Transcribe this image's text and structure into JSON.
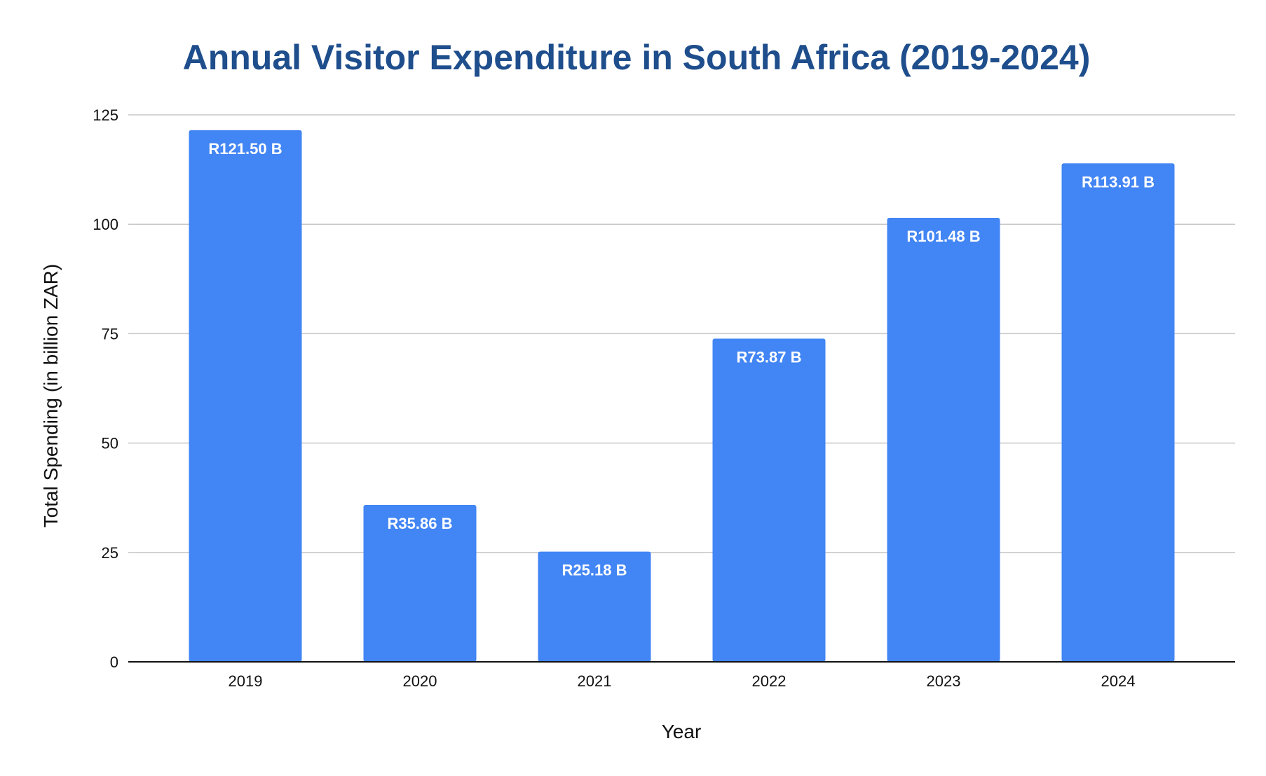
{
  "chart_data": {
    "type": "bar",
    "title": "Annual Visitor Expenditure in South Africa (2019-2024)",
    "xlabel": "Year",
    "ylabel": "Total Spending (in billion ZAR)",
    "categories": [
      "2019",
      "2020",
      "2021",
      "2022",
      "2023",
      "2024"
    ],
    "values": [
      121.5,
      35.86,
      25.18,
      73.87,
      101.48,
      113.91
    ],
    "data_labels": [
      "R121.50 B",
      "R35.86 B",
      "R25.18 B",
      "R73.87 B",
      "R101.48 B",
      "R113.91 B"
    ],
    "ylim": [
      0,
      125
    ],
    "yticks": [
      0,
      25,
      50,
      75,
      100,
      125
    ],
    "ytick_labels": [
      "0",
      "25",
      "50",
      "75",
      "100",
      "125"
    ],
    "grid": true,
    "legend": "none",
    "colors": {
      "bar": "#4285f4",
      "title": "#1f4e8c",
      "grid": "#c8c8c8",
      "axis": "#111111",
      "data_label": "#ffffff"
    }
  }
}
